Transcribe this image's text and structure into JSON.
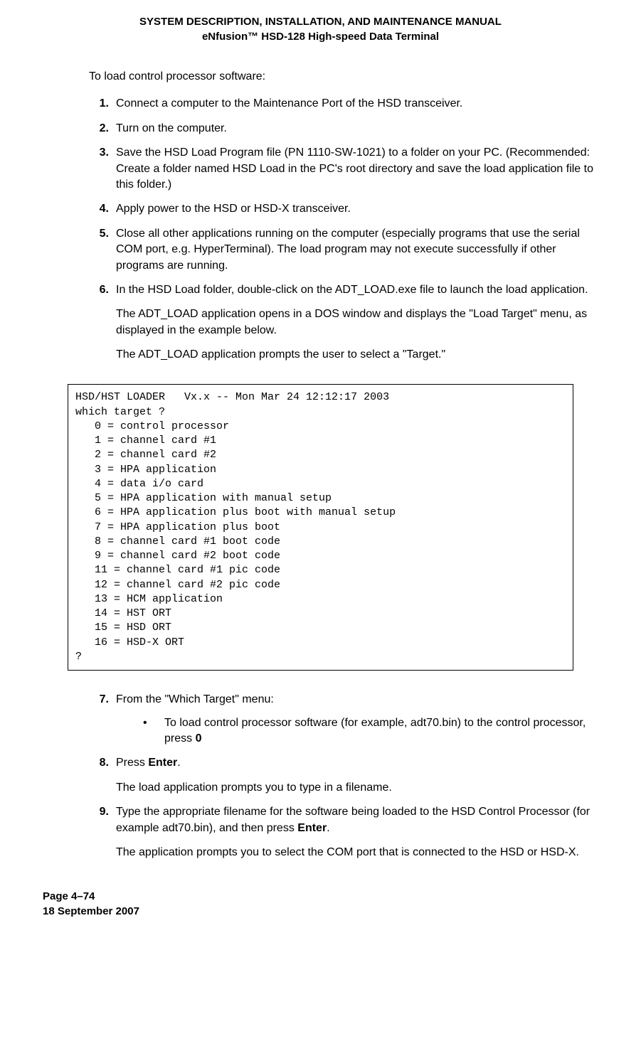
{
  "header": {
    "line1": "SYSTEM DESCRIPTION, INSTALLATION, AND MAINTENANCE MANUAL",
    "line2": "eNfusion™ HSD-128 High-speed Data Terminal"
  },
  "intro": "To load control processor software:",
  "steps": {
    "s1": {
      "num": "1.",
      "text": "Connect a computer to the Maintenance Port of the HSD transceiver."
    },
    "s2": {
      "num": "2.",
      "text": "Turn on the computer."
    },
    "s3": {
      "num": "3.",
      "text": "Save the HSD Load Program file (PN 1110-SW-1021) to a folder on your PC. (Recommended: Create a folder named HSD Load in the PC's root directory and save the load application file to this folder.)"
    },
    "s4": {
      "num": "4.",
      "text": "Apply power to the HSD or HSD-X transceiver."
    },
    "s5": {
      "num": "5.",
      "text": "Close all other applications running on the computer (especially programs that use the serial COM port, e.g. HyperTerminal). The load program may not execute successfully if other programs are running."
    },
    "s6": {
      "num": "6.",
      "text": "In the HSD Load folder, double-click on the ADT_LOAD.exe file to launch the load application.",
      "para1": "The ADT_LOAD application opens in a DOS window and displays the \"Load Target\" menu, as displayed in the example below.",
      "para2": "The ADT_LOAD application prompts the user to select a \"Target.\""
    },
    "s7": {
      "num": "7.",
      "text": "From the \"Which Target\" menu:",
      "bullet_pre": "To load control processor software (for example, adt70.bin) to the control processor, press ",
      "bullet_bold": "0"
    },
    "s8": {
      "num": "8.",
      "pre": "Press ",
      "bold": "Enter",
      "post": ".",
      "para1": "The load application prompts you to type in a filename."
    },
    "s9": {
      "num": "9.",
      "pre": "Type the appropriate filename for the software being loaded to the HSD Control Processor (for example adt70.bin), and then press ",
      "bold": "Enter",
      "post": ".",
      "para1": "The application prompts you to select the COM port that is connected to the HSD or HSD-X."
    }
  },
  "code": "HSD/HST LOADER   Vx.x -- Mon Mar 24 12:12:17 2003\nwhich target ?\n   0 = control processor\n   1 = channel card #1\n   2 = channel card #2\n   3 = HPA application\n   4 = data i/o card\n   5 = HPA application with manual setup\n   6 = HPA application plus boot with manual setup\n   7 = HPA application plus boot\n   8 = channel card #1 boot code\n   9 = channel card #2 boot code\n   11 = channel card #1 pic code\n   12 = channel card #2 pic code\n   13 = HCM application\n   14 = HST ORT\n   15 = HSD ORT\n   16 = HSD-X ORT\n?",
  "footer": {
    "page": "Page 4–74",
    "date": "18 September 2007"
  }
}
